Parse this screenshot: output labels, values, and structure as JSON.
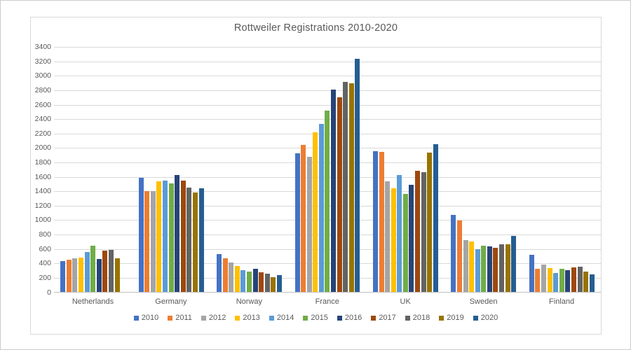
{
  "window": {
    "background_color": "#ffffff",
    "outer_border_color": "#cccccc",
    "frame_border_color": "#d9d9d9"
  },
  "chart_data": {
    "type": "bar",
    "title": "Rottweiler Registrations 2010-2020",
    "title_color": "#595959",
    "text_color": "#595959",
    "gridline_color": "#d9d9d9",
    "axis_line_color": "#bfbfbf",
    "grid": true,
    "legend_position": "bottom",
    "xlabel": "",
    "ylabel": "",
    "ylim": [
      0,
      3400
    ],
    "ytick_step": 200,
    "yticks": [
      0,
      200,
      400,
      600,
      800,
      1000,
      1200,
      1400,
      1600,
      1800,
      2000,
      2200,
      2400,
      2600,
      2800,
      3000,
      3200,
      3400
    ],
    "categories": [
      "Netherlands",
      "Germany",
      "Norway",
      "France",
      "UK",
      "Sweden",
      "Finland"
    ],
    "series": [
      {
        "name": "2010",
        "color": "#4472C4",
        "values": [
          440,
          1590,
          530,
          1930,
          1960,
          1080,
          520
        ]
      },
      {
        "name": "2011",
        "color": "#ED7D31",
        "values": [
          455,
          1410,
          475,
          2045,
          1950,
          1000,
          330
        ]
      },
      {
        "name": "2012",
        "color": "#A5A5A5",
        "values": [
          480,
          1405,
          415,
          1885,
          1545,
          730,
          385
        ]
      },
      {
        "name": "2013",
        "color": "#FFC000",
        "values": [
          490,
          1540,
          365,
          2225,
          1445,
          710,
          340
        ]
      },
      {
        "name": "2014",
        "color": "#5B9BD5",
        "values": [
          560,
          1555,
          315,
          2340,
          1630,
          605,
          270
        ]
      },
      {
        "name": "2015",
        "color": "#70AD47",
        "values": [
          650,
          1515,
          290,
          2520,
          1365,
          650,
          330
        ]
      },
      {
        "name": "2016",
        "color": "#264478",
        "values": [
          470,
          1630,
          335,
          2815,
          1490,
          640,
          310
        ]
      },
      {
        "name": "2017",
        "color": "#9E480E",
        "values": [
          580,
          1555,
          285,
          2705,
          1690,
          620,
          345
        ]
      },
      {
        "name": "2018",
        "color": "#636363",
        "values": [
          590,
          1455,
          265,
          2920,
          1665,
          670,
          360
        ]
      },
      {
        "name": "2019",
        "color": "#997300",
        "values": [
          475,
          1385,
          215,
          2905,
          1940,
          665,
          295
        ]
      },
      {
        "name": "2020",
        "color": "#255E91",
        "values": [
          0,
          1450,
          240,
          3240,
          2055,
          790,
          250
        ]
      }
    ]
  }
}
